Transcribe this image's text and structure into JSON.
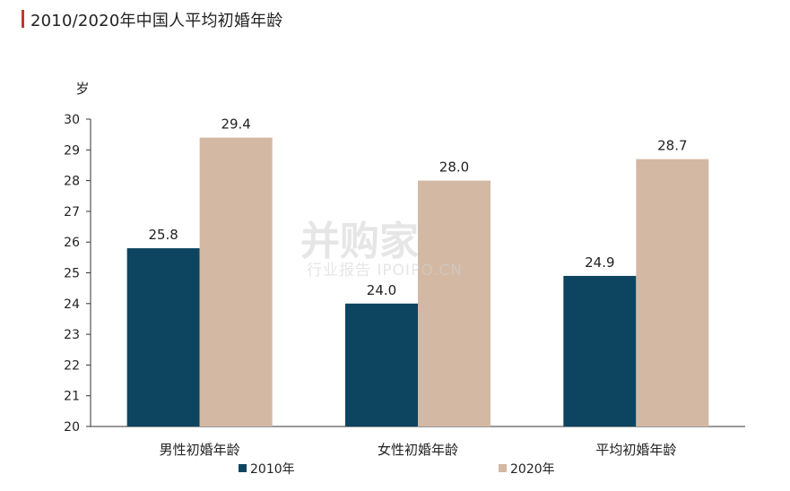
{
  "title": "2010/2020年中国人平均初婚年龄",
  "chart_data": {
    "type": "bar",
    "categories": [
      "男性初婚年龄",
      "女性初婚年龄",
      "平均初婚年龄"
    ],
    "series": [
      {
        "name": "2010年",
        "values": [
          25.8,
          24.0,
          24.9
        ],
        "color": "#0d4560"
      },
      {
        "name": "2020年",
        "values": [
          29.4,
          28.0,
          28.7
        ],
        "color": "#d3b8a3"
      }
    ],
    "ylabel": "岁",
    "ylim": [
      20,
      30
    ],
    "yticks": [
      20,
      21,
      22,
      23,
      24,
      25,
      26,
      27,
      28,
      29,
      30
    ],
    "grid": false,
    "legend_position": "bottom"
  },
  "watermark": {
    "main": "并购家",
    "sub": "行业报告 IPOIPO.CN"
  }
}
